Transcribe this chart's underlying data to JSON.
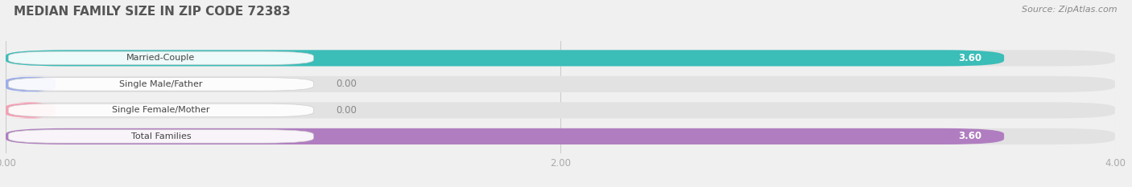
{
  "title": "MEDIAN FAMILY SIZE IN ZIP CODE 72383",
  "source": "Source: ZipAtlas.com",
  "categories": [
    "Married-Couple",
    "Single Male/Father",
    "Single Female/Mother",
    "Total Families"
  ],
  "values": [
    3.6,
    0.0,
    0.0,
    3.6
  ],
  "bar_colors": [
    "#3bbdb8",
    "#9daee8",
    "#f4a0b5",
    "#b07ec0"
  ],
  "xlim": [
    0,
    4.0
  ],
  "xticks": [
    0.0,
    2.0,
    4.0
  ],
  "xtick_labels": [
    "0.00",
    "2.00",
    "4.00"
  ],
  "background_color": "#f0f0f0",
  "bar_bg_color": "#e2e2e2",
  "title_fontsize": 11,
  "bar_height": 0.62,
  "source_fontsize": 8
}
